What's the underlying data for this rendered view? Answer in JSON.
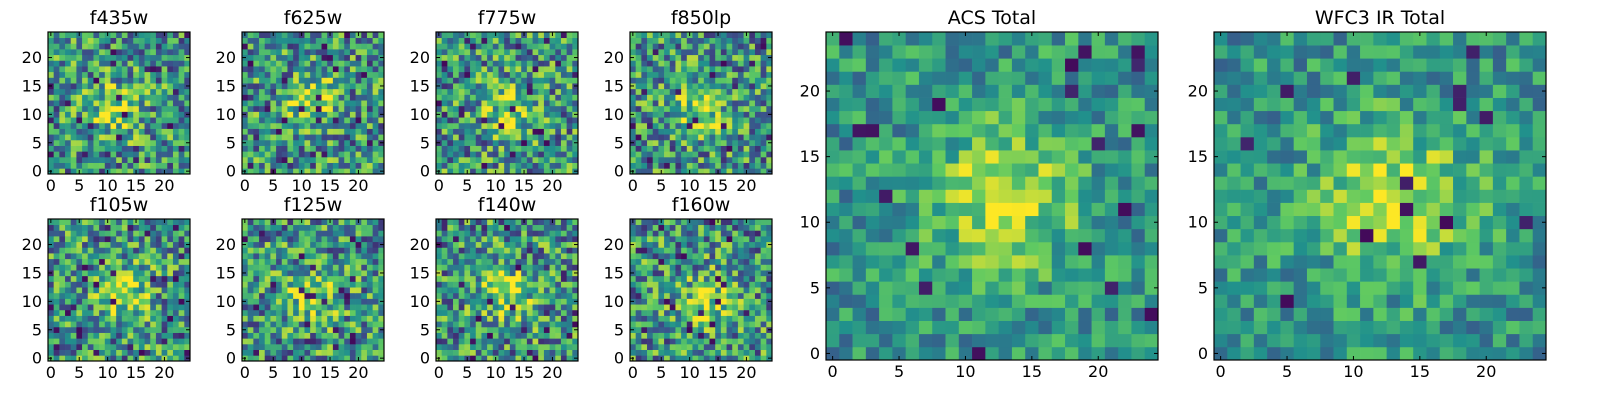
{
  "chart_data": {
    "type": "heatmap",
    "colormap": [
      "#440154",
      "#3b528b",
      "#21918c",
      "#5ec962",
      "#fde725"
    ],
    "grid_size": 25,
    "grid": false,
    "legend": "none",
    "panels": [
      {
        "title": "f435w",
        "xlim": [
          0,
          24
        ],
        "ylim": [
          0,
          24
        ],
        "xticks": [
          0,
          5,
          10,
          15,
          20
        ],
        "yticks": [
          0,
          5,
          10,
          15,
          20
        ],
        "peak_xy": [
          11,
          11
        ]
      },
      {
        "title": "f625w",
        "xlim": [
          0,
          24
        ],
        "ylim": [
          0,
          24
        ],
        "xticks": [
          0,
          5,
          10,
          15,
          20
        ],
        "yticks": [
          0,
          5,
          10,
          15,
          20
        ],
        "peak_xy": [
          12,
          12
        ]
      },
      {
        "title": "f775w",
        "xlim": [
          0,
          24
        ],
        "ylim": [
          0,
          24
        ],
        "xticks": [
          0,
          5,
          10,
          15,
          20
        ],
        "yticks": [
          0,
          5,
          10,
          15,
          20
        ],
        "peak_xy": [
          13,
          11
        ]
      },
      {
        "title": "f850lp",
        "xlim": [
          0,
          24
        ],
        "ylim": [
          0,
          24
        ],
        "xticks": [
          0,
          5,
          10,
          15,
          20
        ],
        "yticks": [
          0,
          5,
          10,
          15,
          20
        ],
        "peak_xy": [
          12,
          11
        ]
      },
      {
        "title": "f105w",
        "xlim": [
          0,
          24
        ],
        "ylim": [
          0,
          24
        ],
        "xticks": [
          0,
          5,
          10,
          15,
          20
        ],
        "yticks": [
          0,
          5,
          10,
          15,
          20
        ],
        "peak_xy": [
          13,
          12
        ]
      },
      {
        "title": "f125w",
        "xlim": [
          0,
          24
        ],
        "ylim": [
          0,
          24
        ],
        "xticks": [
          0,
          5,
          10,
          15,
          20
        ],
        "yticks": [
          0,
          5,
          10,
          15,
          20
        ],
        "peak_xy": [
          12,
          11
        ]
      },
      {
        "title": "f140w",
        "xlim": [
          0,
          24
        ],
        "ylim": [
          0,
          24
        ],
        "xticks": [
          0,
          5,
          10,
          15,
          20
        ],
        "yticks": [
          0,
          5,
          10,
          15,
          20
        ],
        "peak_xy": [
          12,
          11
        ]
      },
      {
        "title": "f160w",
        "xlim": [
          0,
          24
        ],
        "ylim": [
          0,
          24
        ],
        "xticks": [
          0,
          5,
          10,
          15,
          20
        ],
        "yticks": [
          0,
          5,
          10,
          15,
          20
        ],
        "peak_xy": [
          13,
          10
        ]
      },
      {
        "title": "ACS Total",
        "xlim": [
          0,
          24
        ],
        "ylim": [
          0,
          24
        ],
        "xticks": [
          0,
          5,
          10,
          15,
          20
        ],
        "yticks": [
          0,
          5,
          10,
          15,
          20
        ],
        "peak_xy": [
          13,
          12
        ]
      },
      {
        "title": "WFC3 IR Total",
        "xlim": [
          0,
          24
        ],
        "ylim": [
          0,
          24
        ],
        "xticks": [
          0,
          5,
          10,
          15,
          20
        ],
        "yticks": [
          0,
          5,
          10,
          15,
          20
        ],
        "peak_xy": [
          13,
          12
        ]
      }
    ]
  }
}
